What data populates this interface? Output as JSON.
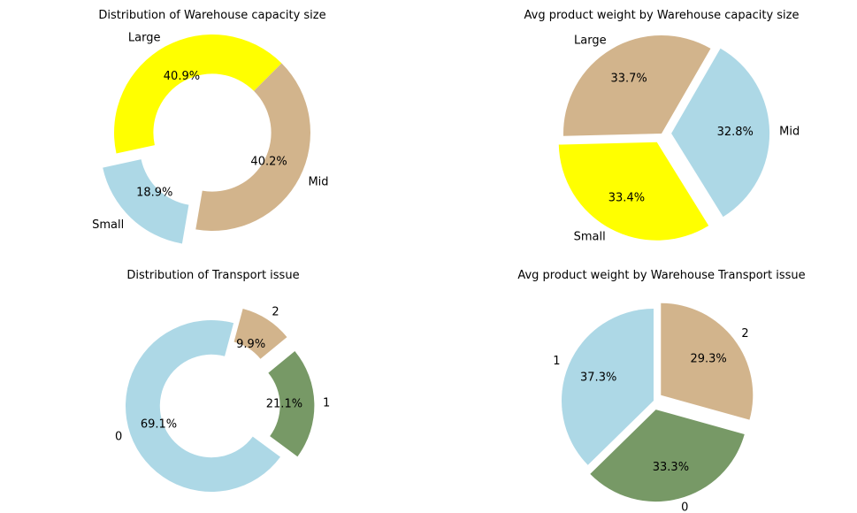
{
  "chart_data": [
    {
      "type": "pie",
      "donut": true,
      "title": "Distribution of Warehouse capacity size",
      "labels": [
        "Large",
        "Small",
        "Mid"
      ],
      "values": [
        40.9,
        18.9,
        40.2
      ],
      "pct_labels": [
        "40.9%",
        "18.9%",
        "40.2%"
      ],
      "colors": [
        "#ffff00",
        "#add8e6",
        "#d2b48c"
      ],
      "explode": [
        0,
        1,
        0
      ]
    },
    {
      "type": "pie",
      "donut": false,
      "title": "Avg product weight by Warehouse capacity size",
      "labels": [
        "Large",
        "Small",
        "Mid"
      ],
      "values": [
        33.7,
        33.4,
        32.8
      ],
      "pct_labels": [
        "33.7%",
        "33.4%",
        "32.8%"
      ],
      "colors": [
        "#d2b48c",
        "#ffff00",
        "#add8e6"
      ],
      "explode": [
        0,
        1,
        1
      ]
    },
    {
      "type": "pie",
      "donut": true,
      "title": "Distribution of Transport issue",
      "labels": [
        "0",
        "1",
        "2"
      ],
      "values": [
        69.1,
        21.1,
        9.9
      ],
      "pct_labels": [
        "69.1%",
        "21.1%",
        "9.9%"
      ],
      "colors": [
        "#add8e6",
        "#779966",
        "#d2b48c"
      ],
      "explode": [
        0,
        1,
        1
      ]
    },
    {
      "type": "pie",
      "donut": false,
      "title": "Avg product weight by Warehouse Transport issue",
      "labels": [
        "1",
        "0",
        "2"
      ],
      "values": [
        37.3,
        33.3,
        29.3
      ],
      "pct_labels": [
        "37.3%",
        "33.3%",
        "29.3%"
      ],
      "colors": [
        "#add8e6",
        "#779966",
        "#d2b48c"
      ],
      "explode": [
        0,
        1,
        1
      ]
    }
  ]
}
